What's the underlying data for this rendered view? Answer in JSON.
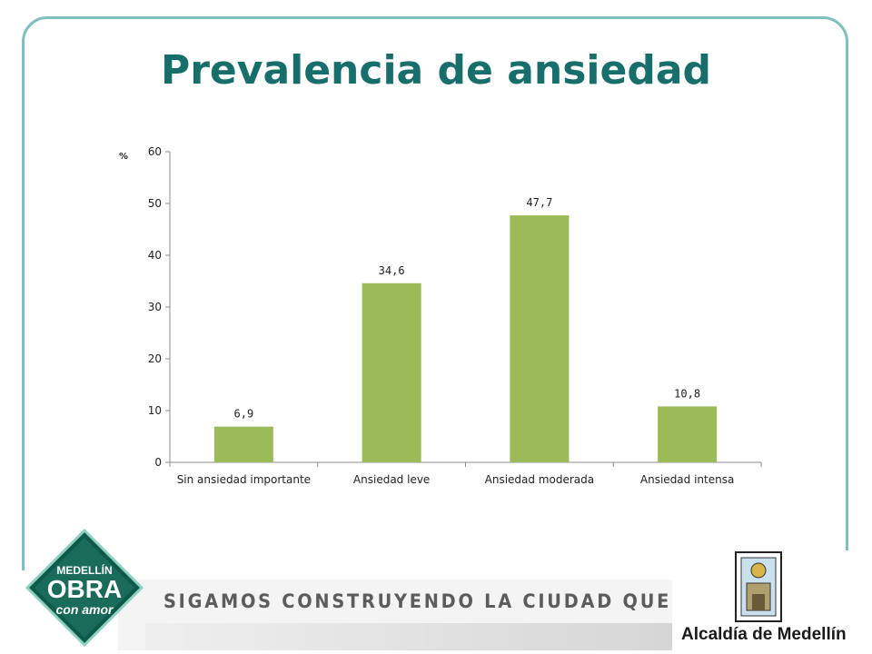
{
  "slide": {
    "title": "Prevalencia de ansiedad",
    "slogan": "SIGAMOS CONSTRUYENDO LA CIUDAD QUE SOÑAMOS",
    "logo_text": "Alcaldía de Medellín",
    "badge": {
      "line1": "MEDELLÍN",
      "line2": "OBRA",
      "line3": "con amor"
    }
  },
  "colors": {
    "bar": "#9bbb59",
    "title": "#176e6b",
    "frame": "#7fbfbf",
    "badge": "#1a6b5a"
  },
  "chart_data": {
    "type": "bar",
    "title": "",
    "ylabel": "%",
    "xlabel": "",
    "categories": [
      "Sin ansiedad importante",
      "Ansiedad leve",
      "Ansiedad moderada",
      "Ansiedad intensa"
    ],
    "values": [
      6.9,
      34.6,
      47.7,
      10.8
    ],
    "value_labels": [
      "6,9",
      "34,6",
      "47,7",
      "10,8"
    ],
    "ylim": [
      0,
      60
    ],
    "yticks": [
      0,
      10,
      20,
      30,
      40,
      50,
      60
    ],
    "grid": false,
    "legend": "none"
  }
}
